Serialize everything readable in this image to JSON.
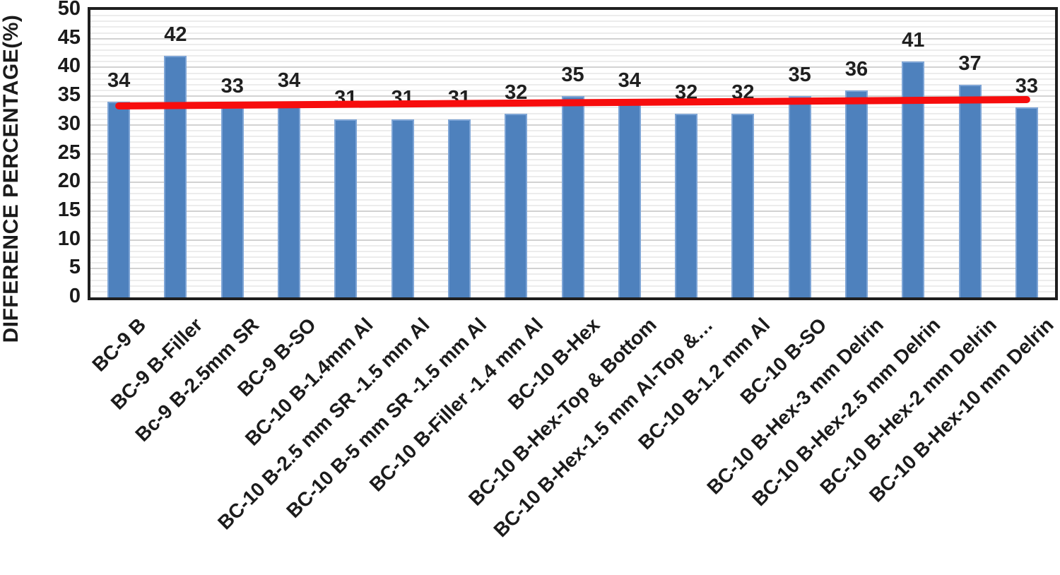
{
  "chart_data": {
    "type": "bar",
    "title": "",
    "xlabel": "",
    "ylabel": "DIFFERENCE PERCENTAGE(%)",
    "ylim": [
      0,
      50
    ],
    "ytick_step": 5,
    "yticks": [
      0,
      5,
      10,
      15,
      20,
      25,
      30,
      35,
      40,
      45,
      50
    ],
    "grid": "horizontal-minor-every-1-major-every-5",
    "legend": "none",
    "categories": [
      "BC-9 B",
      "BC-9 B-Filler",
      "Bc-9 B-2.5mm SR",
      "BC-9 B-SO",
      "BC-10 B-1.4mm Al",
      "BC-10 B-2.5 mm SR -1.5 mm Al",
      "BC-10 B-5 mm SR -1.5 mm Al",
      "BC-10 B-Filler -1.4 mm Al",
      "BC-10 B-Hex",
      "BC-10 B-Hex-Top & Bottom",
      "BC-10 B-Hex-1.5 mm Al-Top &…",
      "BC-10 B-1.2 mm Al",
      "BC-10 B-SO",
      "BC-10 B-Hex-3 mm Delrin",
      "BC-10 B-Hex-2.5 mm Delrin",
      "BC-10 B-Hex-2 mm Delrin",
      "BC-10 B-Hex-10 mm Delrin"
    ],
    "values": [
      34,
      42,
      33,
      34,
      31,
      31,
      31,
      32,
      35,
      34,
      32,
      32,
      35,
      36,
      41,
      37,
      33
    ],
    "data_labels_shown": true,
    "bar_color": "#4e81bd",
    "bar_border_color": "#7ea5d6",
    "trendline": {
      "type": "linear",
      "start_value": 33.3,
      "end_value": 34.4,
      "color": "#f70d0d"
    },
    "colors": {
      "text": "#1b1b1b",
      "plot_border": "#1f1f1f",
      "grid_minor": "#ececec",
      "grid_major": "#d2d2d2"
    }
  }
}
